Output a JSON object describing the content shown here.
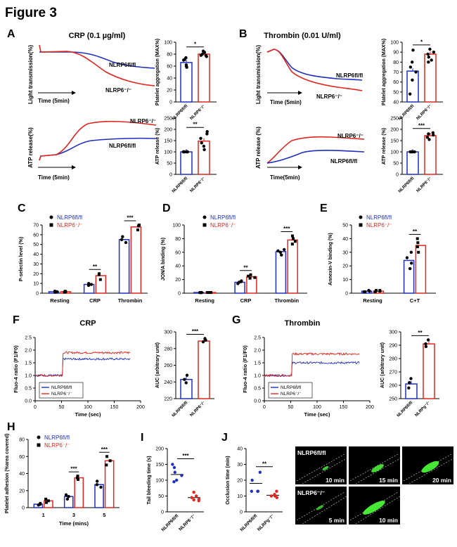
{
  "figure_title": "Figure 3",
  "colors": {
    "red": "#e0261f",
    "blue": "#1f2fbf",
    "green": "#4cff3a"
  },
  "panel_letters": {
    "A": "A",
    "B": "B",
    "C": "C",
    "D": "D",
    "E": "E",
    "F": "F",
    "G": "G",
    "H": "H",
    "I": "I",
    "J": "J"
  },
  "A": {
    "title": "CRP (0.1 µg/ml)",
    "trace_ylabel": "Light transmission(%)",
    "trace_xlabel": "Time  (5min)",
    "trace_red_label": "NLRP6⁻/⁻",
    "trace_blue_label": "NLRP6fl/fl",
    "atp_ylabel": "ATP release(%)",
    "atp_xlabel": "Time  (5min)",
    "atp_red_label": "NLRP6⁻/⁻",
    "atp_blue_label": "NLRP6fl/fl"
  },
  "B": {
    "title": "Thrombin (0.01 U/ml)",
    "trace_ylabel": "Light transmission(%)",
    "trace_xlabel": "Time (5min)",
    "trace_red_label": "NLRP6⁻/⁻",
    "trace_blue_label": "NLRP6fl/fl",
    "atp_ylabel": "ATP release (%)",
    "atp_xlabel": "Time(5min)",
    "atp_red_label": "NLRP6⁻/⁻",
    "atp_blue_label": "NLRP6fl/fl"
  },
  "group_labels": {
    "flfl": "NLRP6fl/fl",
    "ko": "NLRP6⁻/⁻",
    "ko_alt": "NLRPg⁻/⁻"
  },
  "legend": {
    "flfl": "NLRP6fl/fl",
    "ko": "NLRP6⁻/⁻"
  },
  "F": {
    "title": "CRP",
    "ylabel": "Fluo-4 ratio (F1/F0)",
    "xlabel": "Time (sec)"
  },
  "G": {
    "title": "Thrombin",
    "ylabel": "Fluo-4 ratio (F1/F0)",
    "xlabel": "Time (sec)"
  },
  "J_images": {
    "row1_label": "NLRP6fl/fl",
    "row2_label": "NLRP6⁻/⁻",
    "times": [
      "10 min",
      "15 min",
      "20 min",
      "5 min",
      "10 min"
    ]
  },
  "chart_data": [
    {
      "id": "A_agg",
      "type": "bar",
      "categories": [
        "NLRP6fl/fl",
        "NLRP6⁻/⁻"
      ],
      "values": [
        66,
        80
      ],
      "points": [
        [
          62,
          58,
          70,
          71,
          74,
          60
        ],
        [
          78,
          76,
          83,
          85,
          80,
          78
        ]
      ],
      "ylabel": "Platelet aggregation (MAX%)",
      "ylim": [
        0,
        100
      ],
      "yticks": [
        0,
        20,
        40,
        60,
        80,
        100
      ],
      "significance": "*"
    },
    {
      "id": "A_atp",
      "type": "bar",
      "categories": [
        "NLRP6fl/fl",
        "NLRP6⁻/⁻"
      ],
      "values": [
        100,
        148
      ],
      "points": [
        [
          100,
          100,
          100,
          100,
          100,
          100
        ],
        [
          110,
          125,
          140,
          160,
          180,
          190
        ]
      ],
      "ylabel": "ATP release (%)",
      "ylim": [
        0,
        250
      ],
      "yticks": [
        0,
        50,
        100,
        150,
        200,
        250
      ],
      "significance": "**"
    },
    {
      "id": "B_agg",
      "type": "bar",
      "categories": [
        "NLRP6fl/fl",
        "NLRP6⁻/⁻"
      ],
      "values": [
        71,
        88
      ],
      "points": [
        [
          48,
          62,
          70,
          75,
          80,
          92
        ],
        [
          82,
          85,
          88,
          90,
          93,
          80
        ]
      ],
      "ylabel": "Platelet aggregation (MAX%)",
      "ylim": [
        40,
        100
      ],
      "yticks": [
        40,
        50,
        60,
        70,
        80,
        90,
        100
      ],
      "significance": "*"
    },
    {
      "id": "B_atp",
      "type": "bar",
      "categories": [
        "NLRP6fl/fl",
        "NLRP6⁻/⁻"
      ],
      "values": [
        100,
        172
      ],
      "points": [
        [
          100,
          100,
          100,
          100,
          100
        ],
        [
          155,
          165,
          175,
          180,
          185
        ]
      ],
      "ylabel": "ATP release (%)",
      "ylim": [
        0,
        250
      ],
      "yticks": [
        0,
        50,
        100,
        150,
        200,
        250
      ],
      "significance": "***"
    },
    {
      "id": "C",
      "type": "bar",
      "categories": [
        "Resting",
        "CRP",
        "Thrombin"
      ],
      "ylabel": "P-selectin level (%)",
      "ylim": [
        0,
        70
      ],
      "yticks": [
        0,
        10,
        20,
        30,
        40,
        50,
        60,
        70
      ],
      "series": [
        {
          "name": "NLRP6fl/fl",
          "values": [
            1.5,
            9,
            55
          ],
          "points": [
            [
              1,
              2,
              1.5
            ],
            [
              8,
              9,
              10
            ],
            [
              52,
              55,
              58
            ]
          ]
        },
        {
          "name": "NLRP6⁻/⁻",
          "values": [
            1.5,
            18,
            68
          ],
          "points": [
            [
              1,
              2,
              1.5
            ],
            [
              14,
              20,
              19
            ],
            [
              65,
              69,
              70
            ]
          ]
        }
      ],
      "significance": [
        {
          "group": 1,
          "label": "**"
        },
        {
          "group": 2,
          "label": "***"
        }
      ]
    },
    {
      "id": "D",
      "type": "bar",
      "categories": [
        "Resting",
        "CRP",
        "Thrombin"
      ],
      "ylabel": "JON/A binding (%)",
      "ylim": [
        0,
        100
      ],
      "yticks": [
        0,
        20,
        40,
        60,
        80,
        100
      ],
      "series": [
        {
          "name": "NLRP6fl/fl",
          "values": [
            1,
            16,
            61
          ],
          "points": [
            [
              1,
              1,
              1,
              1
            ],
            [
              14,
              16,
              17,
              18
            ],
            [
              56,
              60,
              62,
              64
            ]
          ]
        },
        {
          "name": "NLRP6⁻/⁻",
          "values": [
            1,
            24,
            78
          ],
          "points": [
            [
              1,
              1,
              1,
              1
            ],
            [
              22,
              23,
              25,
              27
            ],
            [
              72,
              76,
              80,
              84
            ]
          ]
        }
      ],
      "significance": [
        {
          "group": 1,
          "label": "**"
        },
        {
          "group": 2,
          "label": "***"
        }
      ]
    },
    {
      "id": "E",
      "type": "bar",
      "categories": [
        "Resting",
        "C+T"
      ],
      "ylabel": "Annexin-V binding (%)",
      "ylim": [
        0,
        50
      ],
      "yticks": [
        0,
        10,
        20,
        30,
        40,
        50
      ],
      "series": [
        {
          "name": "NLRP6fl/fl",
          "values": [
            1.5,
            24
          ],
          "points": [
            [
              1,
              2,
              1.5,
              1
            ],
            [
              18,
              22,
              26,
              30
            ]
          ]
        },
        {
          "name": "NLRP6⁻/⁻",
          "values": [
            1.5,
            35
          ],
          "points": [
            [
              1,
              2,
              1.5,
              2
            ],
            [
              30,
              34,
              37,
              40
            ]
          ]
        }
      ],
      "significance": [
        {
          "group": 1,
          "label": "**"
        }
      ]
    },
    {
      "id": "F_trace",
      "type": "line",
      "xlim": [
        0,
        200
      ],
      "ylim": [
        0,
        2.5
      ],
      "xticks": [
        0,
        50,
        100,
        150,
        200
      ],
      "yticks": [
        0,
        0.5,
        1.0,
        1.5,
        2.0,
        2.5
      ],
      "series": [
        {
          "name": "NLRP6fl/fl",
          "baseline": 1.0,
          "plateau": 1.65,
          "step_x": 52,
          "end_x": 180
        },
        {
          "name": "NLRP6⁻/⁻",
          "baseline": 1.0,
          "plateau": 1.9,
          "step_x": 52,
          "end_x": 180
        }
      ]
    },
    {
      "id": "F_auc",
      "type": "bar",
      "categories": [
        "NLRP6fl/fl",
        "NLRP6⁻/⁻"
      ],
      "values": [
        243,
        289
      ],
      "points": [
        [
          239,
          243,
          248
        ],
        [
          288,
          290,
          292
        ]
      ],
      "ylabel": "AUC (arbitrary unit)",
      "ylim": [
        220,
        300
      ],
      "yticks": [
        220,
        240,
        260,
        280,
        300
      ],
      "significance": "***"
    },
    {
      "id": "G_trace",
      "type": "line",
      "xlim": [
        0,
        200
      ],
      "ylim": [
        0,
        2.5
      ],
      "xticks": [
        0,
        50,
        100,
        150,
        200
      ],
      "yticks": [
        0,
        0.5,
        1.0,
        1.5,
        2.0,
        2.5
      ],
      "series": [
        {
          "name": "NLRP6fl/fl",
          "baseline": 1.0,
          "plateau": 1.5,
          "step_x": 52,
          "end_x": 180
        },
        {
          "name": "NLRP6⁻/⁻",
          "baseline": 1.0,
          "plateau": 1.85,
          "step_x": 52,
          "end_x": 180
        }
      ]
    },
    {
      "id": "G_auc",
      "type": "bar",
      "categories": [
        "NLRP6fl/fl",
        "NLRPg⁻/⁻"
      ],
      "values": [
        261,
        291
      ],
      "points": [
        [
          258,
          262,
          265
        ],
        [
          289,
          291,
          294
        ]
      ],
      "ylabel": "AUC (arbitrary unit)",
      "ylim": [
        250,
        300
      ],
      "yticks": [
        250,
        260,
        270,
        280,
        290,
        300
      ],
      "significance": "**"
    },
    {
      "id": "H",
      "type": "bar",
      "categories": [
        "1",
        "3",
        "5"
      ],
      "ylabel": "Platelet adhesion (%area covered)",
      "xlabel": "Time (mins)",
      "ylim": [
        0,
        80
      ],
      "yticks": [
        0,
        20,
        40,
        60,
        80
      ],
      "series": [
        {
          "name": "NLRP6fl/fl",
          "values": [
            4,
            13,
            27
          ],
          "points": [
            [
              3,
              4,
              5
            ],
            [
              10,
              13,
              15
            ],
            [
              24,
              27,
              31
            ]
          ]
        },
        {
          "name": "NLRP6⁻/⁻",
          "values": [
            8,
            35,
            55
          ],
          "points": [
            [
              6,
              8,
              10
            ],
            [
              33,
              35,
              37
            ],
            [
              50,
              55,
              60
            ]
          ]
        }
      ],
      "significance": [
        {
          "group": 1,
          "label": "***"
        },
        {
          "group": 2,
          "label": "***"
        }
      ]
    },
    {
      "id": "I",
      "type": "scatter",
      "categories": [
        "NLRP6fl/fl",
        "NLRP6⁻/⁻"
      ],
      "means": [
        118,
        45
      ],
      "points": [
        [
          150,
          140,
          125,
          115,
          100,
          95
        ],
        [
          62,
          50,
          45,
          40,
          38,
          35
        ]
      ],
      "ylabel": "Tail bleeding time (s)",
      "ylim": [
        0,
        200
      ],
      "yticks": [
        0,
        50,
        100,
        150,
        200
      ],
      "significance": "***"
    },
    {
      "id": "J",
      "type": "scatter",
      "categories": [
        "NLRP6fl/fl",
        "NLRPg⁻/⁻"
      ],
      "means": [
        18,
        10.5
      ],
      "points": [
        [
          25,
          20,
          13,
          13,
          13
        ],
        [
          13,
          11,
          10,
          9,
          10
        ]
      ],
      "ylabel": "Occlusion time (min)",
      "ylim": [
        0,
        40
      ],
      "yticks": [
        0,
        10,
        20,
        30,
        40
      ],
      "significance": "**"
    }
  ]
}
